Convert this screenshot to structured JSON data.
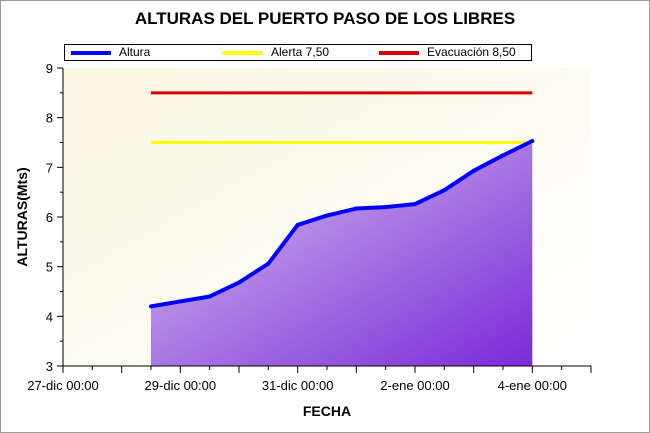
{
  "chart_data": {
    "type": "line",
    "title": "ALTURAS DEL PUERTO PASO DE LOS LIBRES",
    "xlabel": "FECHA",
    "ylabel": "ALTURAS(Mts)",
    "ylim": [
      3,
      9
    ],
    "yticks": [
      "3",
      "4",
      "5",
      "6",
      "7",
      "8",
      "9"
    ],
    "xlim": [
      "2016-12-27 00:00",
      "2017-01-05 00:00"
    ],
    "xticks": [
      {
        "date": "2016-12-27 00:00",
        "label": "27-dic 00:00"
      },
      {
        "date": "2016-12-29 00:00",
        "label": "29-dic 00:00"
      },
      {
        "date": "2016-12-31 00:00",
        "label": "31-dic 00:00"
      },
      {
        "date": "2017-01-02 00:00",
        "label": "2-ene 00:00"
      },
      {
        "date": "2017-01-04 00:00",
        "label": "4-ene 00:00"
      }
    ],
    "legend_position": "top",
    "grid": false,
    "series": [
      {
        "name": "Altura",
        "color": "#0000ff",
        "fill": "area-gradient-purple",
        "points": [
          {
            "x": "2016-12-28 12:00",
            "y": 4.2
          },
          {
            "x": "2016-12-29 00:00",
            "y": 4.3
          },
          {
            "x": "2016-12-29 12:00",
            "y": 4.4
          },
          {
            "x": "2016-12-30 00:00",
            "y": 4.68
          },
          {
            "x": "2016-12-30 12:00",
            "y": 5.06
          },
          {
            "x": "2016-12-31 00:00",
            "y": 5.84
          },
          {
            "x": "2016-12-31 12:00",
            "y": 6.03
          },
          {
            "x": "2017-01-01 00:00",
            "y": 6.17
          },
          {
            "x": "2017-01-01 12:00",
            "y": 6.2
          },
          {
            "x": "2017-01-02 00:00",
            "y": 6.26
          },
          {
            "x": "2017-01-02 12:00",
            "y": 6.54
          },
          {
            "x": "2017-01-03 00:00",
            "y": 6.93
          },
          {
            "x": "2017-01-03 12:00",
            "y": 7.24
          },
          {
            "x": "2017-01-04 00:00",
            "y": 7.53
          }
        ]
      },
      {
        "name": "Alerta 7,50",
        "color": "#ffff00",
        "points": [
          {
            "x": "2016-12-28 12:00",
            "y": 7.5
          },
          {
            "x": "2017-01-04 00:00",
            "y": 7.5
          }
        ]
      },
      {
        "name": "Evacuación 8,50",
        "color": "#dd0000",
        "points": [
          {
            "x": "2016-12-28 12:00",
            "y": 8.5
          },
          {
            "x": "2017-01-04 00:00",
            "y": 8.5
          }
        ]
      }
    ]
  }
}
